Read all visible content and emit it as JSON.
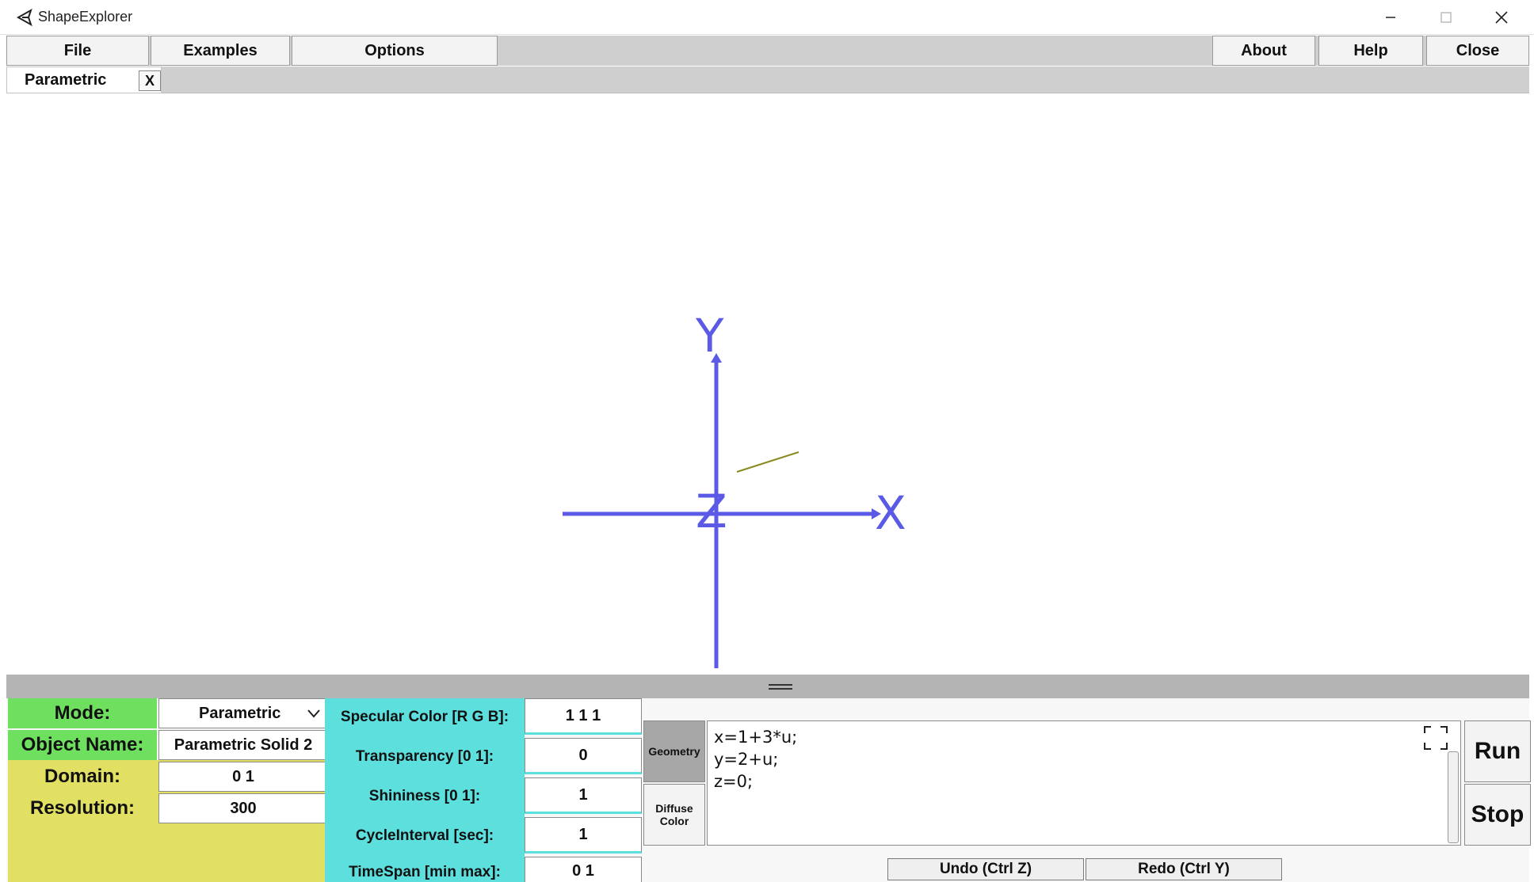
{
  "window": {
    "title": "ShapeExplorer",
    "icons": {
      "app": "unity-logo-icon",
      "minimize": "minimize-icon",
      "maximize": "maximize-icon",
      "close": "close-icon"
    }
  },
  "menu": {
    "file": "File",
    "examples": "Examples",
    "options": "Options",
    "about": "About",
    "help": "Help",
    "close": "Close"
  },
  "tabs": [
    {
      "label": "Parametric",
      "close": "X"
    }
  ],
  "viewport": {
    "axes": {
      "x": "X",
      "y": "Y",
      "z": "Z"
    },
    "axis_color": "#5a5ae6",
    "curve_color": "#8a8a20"
  },
  "panel": {
    "mode_label": "Mode:",
    "mode_value": "Parametric",
    "object_name_label": "Object Name:",
    "object_name_value": "Parametric Solid 2",
    "domain_label": "Domain:",
    "domain_value": "0 1",
    "resolution_label": "Resolution:",
    "resolution_value": "300",
    "properties": [
      {
        "label": "Specular Color [R G B]:",
        "value": "1 1 1"
      },
      {
        "label": "Transparency [0 1]:",
        "value": "0"
      },
      {
        "label": "Shininess [0 1]:",
        "value": "1"
      },
      {
        "label": "CycleInterval [sec]:",
        "value": "1"
      },
      {
        "label": "TimeSpan [min max]:",
        "value": "0 1"
      }
    ],
    "geometry_button": "Geometry",
    "diffuse_color_button_line1": "Diffuse",
    "diffuse_color_button_line2": "Color",
    "code_lines": [
      "x=1+3*u;",
      "y=2+u;",
      "z=0;"
    ],
    "run": "Run",
    "stop": "Stop",
    "undo": "Undo (Ctrl Z)",
    "redo": "Redo (Ctrl Y)"
  }
}
